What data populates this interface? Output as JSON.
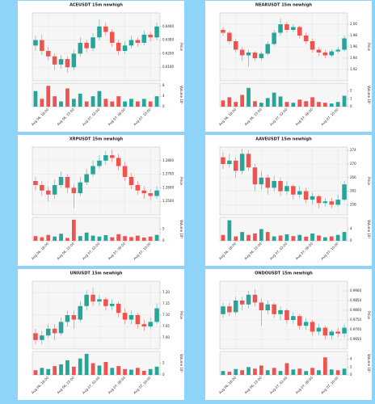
{
  "chart_data": [
    {
      "type": "candlestick",
      "title": "ACEUSDT 15m newhigh",
      "ylabel": "Price",
      "volume_label": "Volume 10⁵",
      "up_color": "#26a69a",
      "down_color": "#ef5350",
      "grid": true,
      "open": [
        0.626,
        0.63,
        0.622,
        0.618,
        0.612,
        0.616,
        0.61,
        0.62,
        0.628,
        0.624,
        0.632,
        0.64,
        0.636,
        0.628,
        0.622,
        0.626,
        0.63,
        0.628,
        0.634,
        0.632
      ],
      "high": [
        0.633,
        0.634,
        0.625,
        0.62,
        0.619,
        0.618,
        0.623,
        0.632,
        0.63,
        0.635,
        0.645,
        0.643,
        0.638,
        0.63,
        0.629,
        0.633,
        0.632,
        0.637,
        0.636,
        0.643
      ],
      "low": [
        0.622,
        0.619,
        0.615,
        0.608,
        0.609,
        0.606,
        0.608,
        0.618,
        0.621,
        0.622,
        0.63,
        0.633,
        0.625,
        0.619,
        0.62,
        0.624,
        0.625,
        0.626,
        0.629,
        0.63
      ],
      "close": [
        0.63,
        0.622,
        0.618,
        0.612,
        0.616,
        0.61,
        0.62,
        0.628,
        0.624,
        0.632,
        0.64,
        0.636,
        0.628,
        0.622,
        0.626,
        0.63,
        0.628,
        0.634,
        0.632,
        0.64
      ],
      "volume": [
        6,
        3,
        8,
        4,
        2,
        7,
        3,
        5,
        2,
        4,
        6,
        3,
        2,
        4,
        2,
        3,
        2,
        3,
        2,
        4
      ],
      "ylim": [
        0.6,
        0.65
      ],
      "yticks": [
        {
          "value": 0.61,
          "label": "0.6100"
        },
        {
          "value": 0.62,
          "label": "0.6200"
        },
        {
          "value": 0.63,
          "label": "0.6300"
        },
        {
          "value": 0.64,
          "label": "0.6400"
        }
      ],
      "volume_ylim": [
        0,
        9
      ],
      "volume_yticks": [
        0,
        4,
        8
      ],
      "xticks": [
        {
          "value": 2,
          "label": "Aug 06, 18:00"
        },
        {
          "value": 6,
          "label": "Aug 06, 22:00"
        },
        {
          "value": 10,
          "label": "Aug 07, 02:00"
        },
        {
          "value": 14,
          "label": "Aug 07, 06:00"
        },
        {
          "value": 18,
          "label": "Aug 07, 10:00"
        }
      ]
    },
    {
      "type": "candlestick",
      "title": "NEARUSDT 15m newhigh",
      "ylabel": "Price",
      "volume_label": "Volume 10⁵",
      "up_color": "#26a69a",
      "down_color": "#ef5350",
      "grid": true,
      "open": [
        1.99,
        1.985,
        1.97,
        1.955,
        1.945,
        1.95,
        1.94,
        1.948,
        1.965,
        1.985,
        2.0,
        1.99,
        1.995,
        1.98,
        1.97,
        1.955,
        1.95,
        1.945,
        1.952,
        1.955
      ],
      "high": [
        1.995,
        1.988,
        1.974,
        1.96,
        1.955,
        1.953,
        1.952,
        1.97,
        1.99,
        2.01,
        2.004,
        2.0,
        1.998,
        1.985,
        1.975,
        1.96,
        1.955,
        1.956,
        1.96,
        1.98
      ],
      "low": [
        1.98,
        1.965,
        1.95,
        1.935,
        1.925,
        1.935,
        1.936,
        1.945,
        1.962,
        1.98,
        1.985,
        1.986,
        1.975,
        1.965,
        1.95,
        1.944,
        1.94,
        1.942,
        1.948,
        1.952
      ],
      "close": [
        1.985,
        1.97,
        1.955,
        1.945,
        1.95,
        1.94,
        1.948,
        1.965,
        1.985,
        2.0,
        1.99,
        1.995,
        1.98,
        1.97,
        1.955,
        1.95,
        1.945,
        1.952,
        1.955,
        1.975
      ],
      "volume": [
        0.8,
        1.2,
        0.6,
        1.5,
        2.4,
        0.7,
        0.5,
        1.1,
        1.8,
        1.3,
        0.6,
        0.5,
        0.9,
        0.7,
        1.2,
        0.6,
        0.5,
        0.4,
        0.6,
        1.4
      ],
      "ylim": [
        1.9,
        2.02
      ],
      "yticks": [
        1.92,
        1.94,
        1.96,
        1.98,
        {
          "value": 2.0,
          "label": "2.00"
        }
      ],
      "volume_ylim": [
        0,
        3
      ],
      "volume_yticks": [
        0,
        1,
        2
      ],
      "xticks": [
        {
          "value": 2,
          "label": "Aug 06, 18:00"
        },
        {
          "value": 6,
          "label": "Aug 06, 22:00"
        },
        {
          "value": 10,
          "label": "Aug 07, 02:00"
        },
        {
          "value": 14,
          "label": "Aug 07, 06:00"
        },
        {
          "value": 18,
          "label": "Aug 07, 10:00"
        }
      ]
    },
    {
      "type": "candlestick",
      "title": "XRPUSDT 15m newhigh",
      "ylabel": "Price",
      "volume_label": "Volume 10⁶",
      "up_color": "#26a69a",
      "down_color": "#ef5350",
      "grid": true,
      "open": [
        1.265,
        1.262,
        1.258,
        1.255,
        1.262,
        1.268,
        1.26,
        1.256,
        1.264,
        1.27,
        1.276,
        1.28,
        1.284,
        1.282,
        1.276,
        1.268,
        1.262,
        1.258,
        1.256,
        1.254
      ],
      "high": [
        1.268,
        1.265,
        1.261,
        1.266,
        1.272,
        1.27,
        1.263,
        1.268,
        1.274,
        1.28,
        1.284,
        1.287,
        1.288,
        1.285,
        1.279,
        1.271,
        1.265,
        1.261,
        1.259,
        1.261
      ],
      "low": [
        1.258,
        1.254,
        1.25,
        1.252,
        1.26,
        1.256,
        1.245,
        1.254,
        1.262,
        1.268,
        1.274,
        1.277,
        1.279,
        1.273,
        1.265,
        1.259,
        1.255,
        1.252,
        1.251,
        1.252
      ],
      "close": [
        1.262,
        1.258,
        1.255,
        1.262,
        1.268,
        1.26,
        1.256,
        1.264,
        1.27,
        1.276,
        1.28,
        1.284,
        1.282,
        1.276,
        1.268,
        1.262,
        1.258,
        1.256,
        1.254,
        1.258
      ],
      "volume": [
        2,
        1.5,
        2.5,
        1.8,
        3,
        1.2,
        9,
        2,
        3.5,
        2.2,
        1.8,
        2.4,
        1.5,
        2.8,
        2,
        1.6,
        2.2,
        1.4,
        1.8,
        2.5
      ],
      "ylim": [
        1.24,
        1.29
      ],
      "yticks": [
        {
          "value": 1.25,
          "label": "1.2500"
        },
        {
          "value": 1.26,
          "label": "1.2600"
        },
        {
          "value": 1.27,
          "label": "1.2700"
        },
        {
          "value": 1.28,
          "label": "1.2800"
        }
      ],
      "volume_ylim": [
        0,
        10
      ],
      "volume_yticks": [
        0,
        5
      ],
      "xticks": [
        {
          "value": 2,
          "label": "Aug 06, 18:00"
        },
        {
          "value": 6,
          "label": "Aug 06, 22:00"
        },
        {
          "value": 10,
          "label": "Aug 07, 02:00"
        },
        {
          "value": 14,
          "label": "Aug 07, 06:00"
        },
        {
          "value": 18,
          "label": "Aug 07, 10:00"
        }
      ]
    },
    {
      "type": "candlestick",
      "title": "AAVEUSDT 15m newhigh",
      "ylabel": "Price",
      "volume_label": "Volume 10³",
      "up_color": "#26a69a",
      "down_color": "#ef5350",
      "grid": true,
      "open": [
        272,
        270,
        271,
        268,
        273,
        269,
        264,
        266,
        263,
        265,
        262,
        263.5,
        261,
        262,
        259.5,
        260.5,
        258.5,
        259,
        258,
        259.5
      ],
      "high": [
        273.5,
        273,
        272,
        274.5,
        274,
        270,
        268,
        267,
        266.5,
        266,
        265,
        264,
        263.5,
        263,
        261.5,
        261,
        260,
        260,
        261,
        265
      ],
      "low": [
        268.5,
        269,
        266,
        267,
        268,
        262,
        262.5,
        261,
        262,
        260.5,
        261,
        259.5,
        260,
        258.5,
        258,
        257,
        257.5,
        257,
        257.5,
        259
      ],
      "close": [
        270,
        271,
        268,
        273,
        269,
        264,
        266,
        263,
        265,
        262,
        263.5,
        261,
        262,
        259.5,
        260.5,
        258.5,
        259,
        258,
        259.5,
        264
      ],
      "volume": [
        2,
        7,
        1.5,
        3,
        2,
        2.5,
        4,
        3,
        1.5,
        1.8,
        2.2,
        1.6,
        2,
        1.4,
        2.5,
        1.8,
        1.2,
        1.5,
        2,
        3
      ],
      "ylim": [
        255,
        275
      ],
      "yticks": [
        258,
        262,
        266,
        270,
        274
      ],
      "volume_ylim": [
        0,
        8
      ],
      "volume_yticks": [
        0,
        4
      ],
      "xticks": [
        {
          "value": 2,
          "label": "Aug 06, 18:00"
        },
        {
          "value": 6,
          "label": "Aug 06, 22:00"
        },
        {
          "value": 10,
          "label": "Aug 07, 02:00"
        },
        {
          "value": 14,
          "label": "Aug 07, 06:00"
        },
        {
          "value": 18,
          "label": "Aug 07, 10:00"
        }
      ]
    },
    {
      "type": "candlestick",
      "title": "UNIUSDT 15m newhigh",
      "ylabel": "Price",
      "volume_label": "Volume 10⁵",
      "up_color": "#26a69a",
      "down_color": "#ef5350",
      "grid": true,
      "open": [
        7.02,
        6.99,
        7.01,
        7.04,
        7.02,
        7.07,
        7.1,
        7.08,
        7.14,
        7.19,
        7.16,
        7.17,
        7.14,
        7.15,
        7.11,
        7.08,
        7.1,
        7.06,
        7.05,
        7.07
      ],
      "high": [
        7.04,
        7.03,
        7.06,
        7.06,
        7.09,
        7.12,
        7.12,
        7.16,
        7.21,
        7.22,
        7.19,
        7.18,
        7.17,
        7.16,
        7.13,
        7.12,
        7.11,
        7.08,
        7.09,
        7.15
      ],
      "low": [
        6.97,
        6.97,
        7.0,
        6.99,
        7.01,
        7.05,
        7.04,
        7.07,
        7.12,
        7.14,
        7.14,
        7.12,
        7.12,
        7.09,
        7.06,
        7.06,
        7.04,
        7.03,
        7.04,
        7.06
      ],
      "close": [
        6.99,
        7.01,
        7.04,
        7.02,
        7.07,
        7.1,
        7.08,
        7.14,
        7.19,
        7.16,
        7.17,
        7.14,
        7.15,
        7.11,
        7.08,
        7.1,
        7.06,
        7.05,
        7.07,
        7.13
      ],
      "volume": [
        0.8,
        1.2,
        1,
        1.5,
        1.8,
        2.5,
        1.4,
        2.8,
        3.6,
        2,
        1.6,
        2.2,
        1.2,
        1.5,
        1,
        0.9,
        1.2,
        0.7,
        1,
        1.4
      ],
      "ylim": [
        6.95,
        7.25
      ],
      "yticks": [
        {
          "value": 7.0,
          "label": "7.00"
        },
        7.05,
        {
          "value": 7.1,
          "label": "7.10"
        },
        7.15,
        {
          "value": 7.2,
          "label": "7.20"
        }
      ],
      "volume_ylim": [
        0,
        4
      ],
      "volume_yticks": [
        0,
        2
      ],
      "xticks": [
        {
          "value": 2,
          "label": "Aug 06, 18:00"
        },
        {
          "value": 6,
          "label": "Aug 06, 22:00"
        },
        {
          "value": 10,
          "label": "Aug 07, 02:00"
        },
        {
          "value": 14,
          "label": "Aug 07, 06:00"
        },
        {
          "value": 18,
          "label": "Aug 07, 10:00"
        }
      ]
    },
    {
      "type": "candlestick",
      "title": "ONDOUSDT 15m newhigh",
      "ylabel": "Price",
      "volume_label": "Volume 10⁵",
      "up_color": "#26a69a",
      "down_color": "#ef5350",
      "grid": true,
      "open": [
        0.978,
        0.982,
        0.979,
        0.985,
        0.983,
        0.988,
        0.984,
        0.98,
        0.983,
        0.978,
        0.98,
        0.975,
        0.977,
        0.972,
        0.974,
        0.969,
        0.971,
        0.967,
        0.969,
        0.968
      ],
      "high": [
        0.984,
        0.984,
        0.987,
        0.987,
        0.99,
        0.991,
        0.986,
        0.985,
        0.984,
        0.982,
        0.981,
        0.979,
        0.978,
        0.976,
        0.975,
        0.973,
        0.972,
        0.97,
        0.971,
        0.973
      ],
      "low": [
        0.976,
        0.977,
        0.978,
        0.98,
        0.981,
        0.982,
        0.972,
        0.978,
        0.976,
        0.975,
        0.973,
        0.973,
        0.97,
        0.97,
        0.967,
        0.967,
        0.965,
        0.965,
        0.966,
        0.966
      ],
      "close": [
        0.982,
        0.979,
        0.985,
        0.983,
        0.988,
        0.984,
        0.98,
        0.983,
        0.978,
        0.98,
        0.975,
        0.977,
        0.972,
        0.974,
        0.969,
        0.971,
        0.967,
        0.969,
        0.968,
        0.971
      ],
      "volume": [
        1,
        0.8,
        1.5,
        1.2,
        2,
        1.6,
        2.4,
        1.2,
        1.8,
        1,
        3,
        1.4,
        1.6,
        1,
        1.8,
        1.2,
        4.5,
        1.4,
        1.2,
        1.6
      ],
      "ylim": [
        0.96,
        0.995
      ],
      "yticks": [
        {
          "value": 0.965,
          "label": "0.9650"
        },
        {
          "value": 0.97,
          "label": "0.9700"
        },
        {
          "value": 0.975,
          "label": "0.9750"
        },
        {
          "value": 0.98,
          "label": "0.9800"
        },
        {
          "value": 0.985,
          "label": "0.9850"
        },
        {
          "value": 0.99,
          "label": "0.9900"
        }
      ],
      "volume_ylim": [
        0,
        6
      ],
      "volume_yticks": [
        0,
        2,
        4
      ],
      "xticks": [
        {
          "value": 2,
          "label": "Aug 06, 18:00"
        },
        {
          "value": 6,
          "label": "Aug 06, 22:00"
        },
        {
          "value": 10,
          "label": "Aug 07, 02:00"
        },
        {
          "value": 14,
          "label": "Aug 07, 06:00"
        },
        {
          "value": 18,
          "label": "Aug 07, 10:00"
        }
      ]
    }
  ]
}
